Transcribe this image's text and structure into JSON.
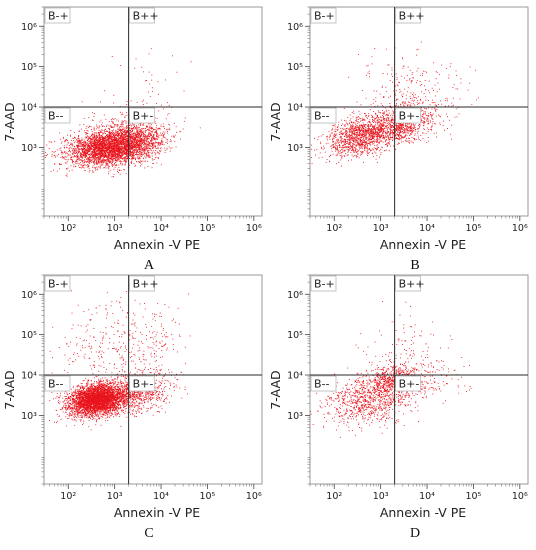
{
  "chart_data": [
    {
      "type": "scatter",
      "panel_label": "A",
      "xlabel": "Annexin -V  PE",
      "ylabel": "7-AAD",
      "x_scale": "log",
      "y_scale": "log",
      "xlim": [
        30,
        1500000
      ],
      "ylim": [
        20,
        3000000
      ],
      "x_ticks": [
        {
          "value": 100,
          "label": "10²"
        },
        {
          "value": 1000,
          "label": "10³"
        },
        {
          "value": 10000,
          "label": "10⁴"
        },
        {
          "value": 100000,
          "label": "10⁵"
        },
        {
          "value": 1000000,
          "label": "10⁶"
        }
      ],
      "y_ticks": [
        {
          "value": 1000,
          "label": "10³"
        },
        {
          "value": 10000,
          "label": "10⁴"
        },
        {
          "value": 100000,
          "label": "10⁵"
        },
        {
          "value": 1000000,
          "label": "10⁶"
        }
      ],
      "gate": {
        "x": 2000,
        "y": 10000
      },
      "quadrants": {
        "top_left": "B-+",
        "top_right": "B++",
        "bottom_left": "B--",
        "bottom_right": "B+-"
      },
      "point_color": "#e8141c",
      "clusters": [
        {
          "n": 3200,
          "cx": 700,
          "cy": 1000,
          "sx": 0.45,
          "sy": 0.22,
          "rho": 0.2
        },
        {
          "n": 700,
          "cx": 3000,
          "cy": 1500,
          "sx": 0.32,
          "sy": 0.25,
          "rho": 0.1
        },
        {
          "n": 250,
          "cx": 2000,
          "cy": 3000,
          "sx": 0.5,
          "sy": 0.3,
          "rho": 0
        },
        {
          "n": 40,
          "cx": 5000,
          "cy": 40000,
          "sx": 0.4,
          "sy": 0.5,
          "rho": 0
        }
      ]
    },
    {
      "type": "scatter",
      "panel_label": "B",
      "xlabel": "Annexin -V  PE",
      "ylabel": "7-AAD",
      "x_scale": "log",
      "y_scale": "log",
      "xlim": [
        30,
        1500000
      ],
      "ylim": [
        20,
        3000000
      ],
      "x_ticks": [
        {
          "value": 100,
          "label": "10²"
        },
        {
          "value": 1000,
          "label": "10³"
        },
        {
          "value": 10000,
          "label": "10⁴"
        },
        {
          "value": 100000,
          "label": "10⁵"
        },
        {
          "value": 1000000,
          "label": "10⁶"
        }
      ],
      "y_ticks": [
        {
          "value": 1000,
          "label": "10³"
        },
        {
          "value": 10000,
          "label": "10⁴"
        },
        {
          "value": 100000,
          "label": "10⁵"
        },
        {
          "value": 1000000,
          "label": "10⁶"
        }
      ],
      "gate": {
        "x": 2000,
        "y": 10000
      },
      "quadrants": {
        "top_left": "B-+",
        "top_right": "B++",
        "bottom_left": "B--",
        "bottom_right": "B+-"
      },
      "point_color": "#e8141c",
      "clusters": [
        {
          "n": 1300,
          "cx": 400,
          "cy": 2000,
          "sx": 0.38,
          "sy": 0.25,
          "rho": 0.3
        },
        {
          "n": 900,
          "cx": 3000,
          "cy": 4000,
          "sx": 0.33,
          "sy": 0.25,
          "rho": 0.3
        },
        {
          "n": 180,
          "cx": 3000,
          "cy": 25000,
          "sx": 0.45,
          "sy": 0.45,
          "rho": 0.1
        },
        {
          "n": 70,
          "cx": 20000,
          "cy": 15000,
          "sx": 0.4,
          "sy": 0.5,
          "rho": 0
        }
      ]
    },
    {
      "type": "scatter",
      "panel_label": "C",
      "xlabel": "Annexin -V  PE",
      "ylabel": "7-AAD",
      "x_scale": "log",
      "y_scale": "log",
      "xlim": [
        30,
        1500000
      ],
      "ylim": [
        20,
        3000000
      ],
      "x_ticks": [
        {
          "value": 100,
          "label": "10²"
        },
        {
          "value": 1000,
          "label": "10³"
        },
        {
          "value": 10000,
          "label": "10⁴"
        },
        {
          "value": 100000,
          "label": "10⁵"
        },
        {
          "value": 1000000,
          "label": "10⁶"
        }
      ],
      "y_ticks": [
        {
          "value": 1000,
          "label": "10³"
        },
        {
          "value": 10000,
          "label": "10⁴"
        },
        {
          "value": 100000,
          "label": "10⁵"
        },
        {
          "value": 1000000,
          "label": "10⁶"
        }
      ],
      "gate": {
        "x": 2000,
        "y": 10000
      },
      "quadrants": {
        "top_left": "B-+",
        "top_right": "B++",
        "bottom_left": "B--",
        "bottom_right": "B+-"
      },
      "point_color": "#e8141c",
      "clusters": [
        {
          "n": 3800,
          "cx": 400,
          "cy": 2500,
          "sx": 0.3,
          "sy": 0.2,
          "rho": 0.2
        },
        {
          "n": 800,
          "cx": 3000,
          "cy": 4000,
          "sx": 0.35,
          "sy": 0.25,
          "rho": 0.2
        },
        {
          "n": 260,
          "cx": 3000,
          "cy": 60000,
          "sx": 0.45,
          "sy": 0.55,
          "rho": 0
        },
        {
          "n": 120,
          "cx": 300,
          "cy": 50000,
          "sx": 0.35,
          "sy": 0.55,
          "rho": 0
        }
      ]
    },
    {
      "type": "scatter",
      "panel_label": "D",
      "xlabel": "Annexin -V  PE",
      "ylabel": "7-AAD",
      "x_scale": "log",
      "y_scale": "log",
      "xlim": [
        30,
        1500000
      ],
      "ylim": [
        20,
        3000000
      ],
      "x_ticks": [
        {
          "value": 100,
          "label": "10²"
        },
        {
          "value": 1000,
          "label": "10³"
        },
        {
          "value": 10000,
          "label": "10⁴"
        },
        {
          "value": 100000,
          "label": "10⁵"
        },
        {
          "value": 1000000,
          "label": "10⁶"
        }
      ],
      "y_ticks": [
        {
          "value": 1000,
          "label": "10³"
        },
        {
          "value": 10000,
          "label": "10⁴"
        },
        {
          "value": 100000,
          "label": "10⁵"
        },
        {
          "value": 1000000,
          "label": "10⁶"
        }
      ],
      "gate": {
        "x": 2000,
        "y": 10000
      },
      "quadrants": {
        "top_left": "B-+",
        "top_right": "B++",
        "bottom_left": "B--",
        "bottom_right": "B+-"
      },
      "point_color": "#e8141c",
      "clusters": [
        {
          "n": 800,
          "cx": 500,
          "cy": 2500,
          "sx": 0.45,
          "sy": 0.32,
          "rho": 0.25
        },
        {
          "n": 650,
          "cx": 2000,
          "cy": 7000,
          "sx": 0.33,
          "sy": 0.22,
          "rho": 0.2
        },
        {
          "n": 110,
          "cx": 3000,
          "cy": 40000,
          "sx": 0.5,
          "sy": 0.5,
          "rho": 0
        },
        {
          "n": 80,
          "cx": 15000,
          "cy": 8000,
          "sx": 0.4,
          "sy": 0.35,
          "rho": 0
        }
      ]
    }
  ]
}
